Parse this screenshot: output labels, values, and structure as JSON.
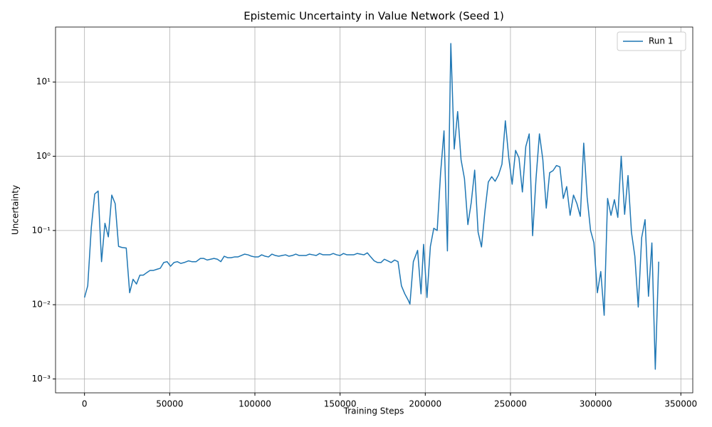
{
  "chart_data": {
    "type": "line",
    "title": "Epistemic Uncertainty in Value Network (Seed 1)",
    "x_label": "Training Steps",
    "y_label": "Uncertainty",
    "log_y": true,
    "grid": true,
    "legend": "upper right",
    "xlim": [
      -17000,
      357000
    ],
    "xticks": [
      0,
      50000,
      100000,
      150000,
      200000,
      250000,
      300000,
      350000
    ],
    "ylim": [
      0.00065,
      55
    ],
    "yticks": [
      {
        "value": 0.001,
        "label": "10⁻³"
      },
      {
        "value": 0.01,
        "label": "10⁻²"
      },
      {
        "value": 0.1,
        "label": "10⁻¹"
      },
      {
        "value": 1,
        "label": "10⁰"
      },
      {
        "value": 10,
        "label": "10¹"
      }
    ],
    "x": [
      0,
      1900,
      4000,
      6000,
      8000,
      10000,
      12000,
      14000,
      16000,
      18000,
      20000,
      22000,
      24500,
      26500,
      28500,
      30500,
      32500,
      34500,
      36500,
      38500,
      40500,
      42500,
      44500,
      46500,
      48500,
      50500,
      52500,
      54500,
      56500,
      58500,
      61000,
      63000,
      65500,
      68000,
      70000,
      72000,
      74000,
      76000,
      78000,
      80000,
      82000,
      84000,
      86000,
      88000,
      90000,
      92000,
      94000,
      96000,
      98000,
      100000,
      102000,
      104000,
      106000,
      108000,
      110000,
      112000,
      114000,
      116000,
      118000,
      120000,
      122000,
      124000,
      126000,
      128000,
      130000,
      132000,
      134000,
      136000,
      138000,
      140000,
      142000,
      144000,
      146000,
      148000,
      150000,
      152000,
      154000,
      156000,
      158000,
      160000,
      162000,
      164000,
      166000,
      168000,
      170000,
      172000,
      174000,
      176000,
      178000,
      180000,
      182000,
      184000,
      186000,
      188000,
      190000,
      191000,
      193000,
      195500,
      197500,
      199000,
      201000,
      203000,
      205000,
      207000,
      209000,
      211000,
      213000,
      215000,
      217000,
      219000,
      221000,
      223000,
      225000,
      227000,
      229000,
      231000,
      233000,
      235000,
      237000,
      239000,
      241000,
      243000,
      245000,
      247000,
      249000,
      251000,
      253000,
      255000,
      257000,
      259000,
      261000,
      263000,
      265000,
      267000,
      269000,
      271000,
      273000,
      275000,
      277000,
      279000,
      281000,
      283000,
      285000,
      287000,
      289000,
      291000,
      293000,
      295000,
      297000,
      299000,
      301000,
      303000,
      305000,
      307000,
      309000,
      311000,
      313000,
      315000,
      317000,
      319000,
      321000,
      323000,
      325000,
      327000,
      329000,
      331000,
      333000,
      335000,
      337000
    ],
    "series": [
      {
        "name": "Run 1",
        "color": "#1f77b4",
        "values": [
          0.0125,
          0.018,
          0.11,
          0.31,
          0.34,
          0.038,
          0.125,
          0.082,
          0.3,
          0.23,
          0.061,
          0.059,
          0.058,
          0.0145,
          0.022,
          0.019,
          0.025,
          0.025,
          0.027,
          0.029,
          0.029,
          0.03,
          0.031,
          0.037,
          0.038,
          0.033,
          0.037,
          0.038,
          0.036,
          0.037,
          0.039,
          0.038,
          0.038,
          0.042,
          0.042,
          0.04,
          0.041,
          0.042,
          0.041,
          0.038,
          0.045,
          0.043,
          0.043,
          0.044,
          0.044,
          0.046,
          0.048,
          0.047,
          0.045,
          0.044,
          0.044,
          0.047,
          0.045,
          0.044,
          0.048,
          0.046,
          0.045,
          0.046,
          0.047,
          0.045,
          0.046,
          0.048,
          0.046,
          0.046,
          0.046,
          0.048,
          0.047,
          0.046,
          0.049,
          0.047,
          0.047,
          0.047,
          0.049,
          0.047,
          0.046,
          0.049,
          0.047,
          0.047,
          0.047,
          0.049,
          0.048,
          0.047,
          0.05,
          0.044,
          0.039,
          0.037,
          0.037,
          0.041,
          0.039,
          0.037,
          0.04,
          0.038,
          0.018,
          0.014,
          0.0115,
          0.0102,
          0.038,
          0.054,
          0.014,
          0.065,
          0.0125,
          0.061,
          0.107,
          0.1,
          0.6,
          2.2,
          0.053,
          33,
          1.25,
          4.0,
          0.9,
          0.5,
          0.12,
          0.24,
          0.65,
          0.095,
          0.06,
          0.18,
          0.45,
          0.53,
          0.46,
          0.56,
          0.78,
          3.0,
          0.95,
          0.42,
          1.2,
          0.95,
          0.33,
          1.35,
          2.0,
          0.085,
          0.5,
          2.0,
          0.9,
          0.2,
          0.6,
          0.64,
          0.75,
          0.72,
          0.27,
          0.39,
          0.16,
          0.3,
          0.23,
          0.155,
          1.5,
          0.28,
          0.1,
          0.068,
          0.0145,
          0.028,
          0.0072,
          0.27,
          0.16,
          0.26,
          0.15,
          1.0,
          0.165,
          0.55,
          0.095,
          0.045,
          0.0093,
          0.08,
          0.14,
          0.013,
          0.068,
          0.00135,
          0.038
        ]
      }
    ]
  }
}
